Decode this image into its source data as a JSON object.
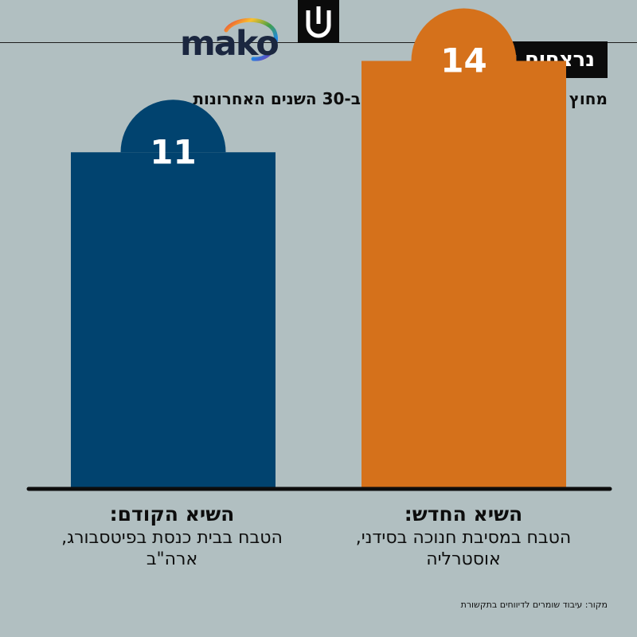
{
  "header": {
    "brand": "mako",
    "title": "נרצחים יהודים",
    "subtitle": "מחוץ לישראל באירוע אחד בודד, ב-30 השנים האחרונות"
  },
  "chart_data": {
    "type": "bar",
    "categories": [
      "השיא הקודם:",
      "השיא החדש:"
    ],
    "category_descriptions": [
      "הטבח בבית כנסת בפיטסבורג, ארה\"ב",
      "הטבח במסיבת חנוכה בסידני, אוסטרליה"
    ],
    "values": [
      11,
      14
    ],
    "colors": [
      "#01436f",
      "#d5711b"
    ],
    "title": "נרצחים יהודים",
    "subtitle": "מחוץ לישראל באירוע אחד בודד, ב-30 השנים האחרונות",
    "xlabel": "",
    "ylabel": "",
    "ylim": [
      0,
      16
    ],
    "grid": false,
    "data_labels": true
  },
  "footer": {
    "source": "מקור: עיבוד שומרים לדיווחים בתקשורת"
  }
}
